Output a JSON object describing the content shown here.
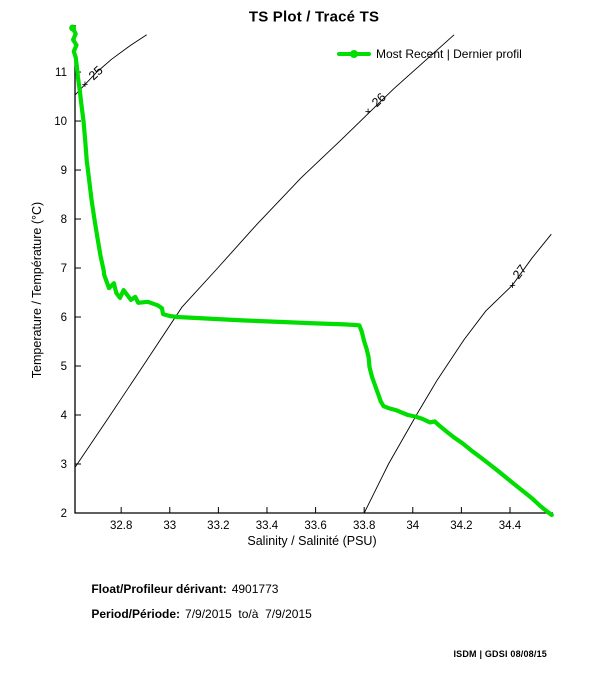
{
  "title": "TS Plot / Tracé TS",
  "legend": {
    "label": "Most Recent | Dernier profil",
    "line_color": "#00dd00"
  },
  "axes": {
    "x_label": "Salinity / Salinité (PSU)",
    "y_label": "Temperature / Température (°C)"
  },
  "footer": {
    "float_label": "Float/Profileur dérivant:",
    "float_value": "4901773",
    "period_label": "Period/Période:",
    "period_value": "7/9/2015  to/à  7/9/2015"
  },
  "watermark": "ISDM | GDSI 08/08/15",
  "chart_data": {
    "type": "line",
    "title": "TS Plot / Tracé TS",
    "xlabel": "Salinity / Salinité (PSU)",
    "ylabel": "Temperature / Température (°C)",
    "xlim": [
      32.61,
      34.577
    ],
    "ylim": [
      2,
      11.96
    ],
    "grid": false,
    "legend_position": "top-right",
    "x_ticks": [
      "32.8",
      "33",
      "33.2",
      "33.4",
      "33.6",
      "33.8",
      "34",
      "34.2",
      "34.4"
    ],
    "x_tick_values": [
      32.8,
      33.0,
      33.2,
      33.4,
      33.6,
      33.8,
      34.0,
      34.2,
      34.4
    ],
    "y_ticks": [
      "2",
      "3",
      "4",
      "5",
      "6",
      "7",
      "8",
      "9",
      "10",
      "11"
    ],
    "y_tick_values": [
      2,
      3,
      4,
      5,
      6,
      7,
      8,
      9,
      10,
      11
    ],
    "series": [
      {
        "name": "Most Recent | Dernier profil",
        "color": "#00dd00",
        "line_width": 4.2,
        "points": [
          [
            32.6,
            11.9
          ],
          [
            32.613,
            11.78
          ],
          [
            32.602,
            11.66
          ],
          [
            32.616,
            11.55
          ],
          [
            32.605,
            11.42
          ],
          [
            32.613,
            11.3
          ],
          [
            32.618,
            11.1
          ],
          [
            32.622,
            10.9
          ],
          [
            32.63,
            10.6
          ],
          [
            32.637,
            10.3
          ],
          [
            32.645,
            10.0
          ],
          [
            32.652,
            9.6
          ],
          [
            32.658,
            9.2
          ],
          [
            32.668,
            8.8
          ],
          [
            32.678,
            8.4
          ],
          [
            32.69,
            8.0
          ],
          [
            32.703,
            7.6
          ],
          [
            32.715,
            7.25
          ],
          [
            32.728,
            6.95
          ],
          [
            32.73,
            6.86
          ],
          [
            32.75,
            6.59
          ],
          [
            32.77,
            6.69
          ],
          [
            32.78,
            6.49
          ],
          [
            32.795,
            6.39
          ],
          [
            32.81,
            6.55
          ],
          [
            32.84,
            6.35
          ],
          [
            32.858,
            6.41
          ],
          [
            32.87,
            6.29
          ],
          [
            32.91,
            6.31
          ],
          [
            32.95,
            6.24
          ],
          [
            32.968,
            6.18
          ],
          [
            32.972,
            6.06
          ],
          [
            33.0,
            6.02
          ],
          [
            33.03,
            6.0
          ],
          [
            33.15,
            5.97
          ],
          [
            33.3,
            5.93
          ],
          [
            33.45,
            5.9
          ],
          [
            33.6,
            5.87
          ],
          [
            33.72,
            5.85
          ],
          [
            33.78,
            5.83
          ],
          [
            33.79,
            5.7
          ],
          [
            33.8,
            5.5
          ],
          [
            33.81,
            5.35
          ],
          [
            33.818,
            5.18
          ],
          [
            33.822,
            4.98
          ],
          [
            33.832,
            4.78
          ],
          [
            33.845,
            4.6
          ],
          [
            33.858,
            4.42
          ],
          [
            33.868,
            4.28
          ],
          [
            33.88,
            4.18
          ],
          [
            33.9,
            4.14
          ],
          [
            33.93,
            4.1
          ],
          [
            33.955,
            4.05
          ],
          [
            33.98,
            4.0
          ],
          [
            34.01,
            3.97
          ],
          [
            34.04,
            3.92
          ],
          [
            34.07,
            3.85
          ],
          [
            34.09,
            3.87
          ],
          [
            34.11,
            3.78
          ],
          [
            34.14,
            3.66
          ],
          [
            34.17,
            3.54
          ],
          [
            34.205,
            3.42
          ],
          [
            34.24,
            3.28
          ],
          [
            34.28,
            3.13
          ],
          [
            34.32,
            2.98
          ],
          [
            34.355,
            2.84
          ],
          [
            34.39,
            2.7
          ],
          [
            34.425,
            2.56
          ],
          [
            34.46,
            2.42
          ],
          [
            34.495,
            2.28
          ],
          [
            34.525,
            2.14
          ],
          [
            34.555,
            2.02
          ],
          [
            34.572,
            1.96
          ]
        ]
      }
    ],
    "contours": [
      {
        "label": "25",
        "label_at": [
          32.696,
          10.98
        ],
        "marker_at": [
          32.651,
          10.76
        ],
        "angle": -43,
        "points": [
          [
            32.61,
            10.53
          ],
          [
            32.7,
            11.0
          ],
          [
            32.76,
            11.26
          ],
          [
            32.84,
            11.55
          ],
          [
            32.905,
            11.76
          ]
        ]
      },
      {
        "label": "26",
        "label_at": [
          33.861,
          10.43
        ],
        "marker_at": [
          33.816,
          10.2
        ],
        "angle": -44,
        "points": [
          [
            32.61,
            2.93
          ],
          [
            32.75,
            3.96
          ],
          [
            32.89,
            5.0
          ],
          [
            33.05,
            6.2
          ],
          [
            33.19,
            6.96
          ],
          [
            33.36,
            7.9
          ],
          [
            33.54,
            8.84
          ],
          [
            33.7,
            9.59
          ],
          [
            33.92,
            10.65
          ],
          [
            34.17,
            11.76
          ]
        ]
      },
      {
        "label": "27",
        "label_at": [
          34.44,
          6.92
        ],
        "marker_at": [
          34.41,
          6.65
        ],
        "angle": -52,
        "points": [
          [
            33.8,
            2.0
          ],
          [
            33.9,
            3.0
          ],
          [
            34.02,
            4.04
          ],
          [
            34.1,
            4.71
          ],
          [
            34.21,
            5.53
          ],
          [
            34.3,
            6.12
          ],
          [
            34.41,
            6.65
          ],
          [
            34.49,
            7.2
          ],
          [
            34.57,
            7.69
          ]
        ]
      }
    ]
  }
}
